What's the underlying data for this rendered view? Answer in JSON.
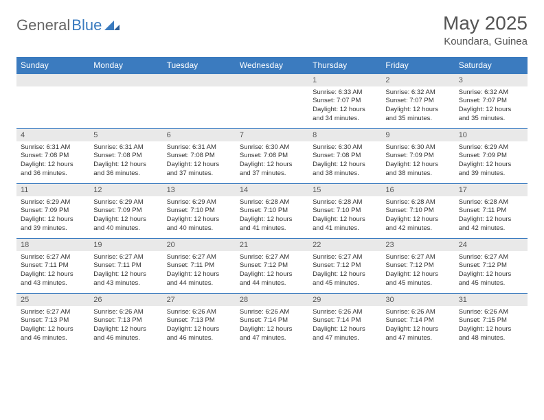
{
  "logo": {
    "word1": "General",
    "word2": "Blue"
  },
  "title": "May 2025",
  "location": "Koundara, Guinea",
  "colors": {
    "header_bg": "#3b7bbf",
    "header_text": "#ffffff",
    "numrow_bg": "#e9e9e9",
    "border_top": "#3b7bbf",
    "body_text": "#333333",
    "title_text": "#555555"
  },
  "day_headers": [
    "Sunday",
    "Monday",
    "Tuesday",
    "Wednesday",
    "Thursday",
    "Friday",
    "Saturday"
  ],
  "weeks": [
    {
      "nums": [
        "",
        "",
        "",
        "",
        "1",
        "2",
        "3"
      ],
      "cells": [
        null,
        null,
        null,
        null,
        {
          "sunrise": "6:33 AM",
          "sunset": "7:07 PM",
          "daylight": "12 hours and 34 minutes."
        },
        {
          "sunrise": "6:32 AM",
          "sunset": "7:07 PM",
          "daylight": "12 hours and 35 minutes."
        },
        {
          "sunrise": "6:32 AM",
          "sunset": "7:07 PM",
          "daylight": "12 hours and 35 minutes."
        }
      ]
    },
    {
      "nums": [
        "4",
        "5",
        "6",
        "7",
        "8",
        "9",
        "10"
      ],
      "cells": [
        {
          "sunrise": "6:31 AM",
          "sunset": "7:08 PM",
          "daylight": "12 hours and 36 minutes."
        },
        {
          "sunrise": "6:31 AM",
          "sunset": "7:08 PM",
          "daylight": "12 hours and 36 minutes."
        },
        {
          "sunrise": "6:31 AM",
          "sunset": "7:08 PM",
          "daylight": "12 hours and 37 minutes."
        },
        {
          "sunrise": "6:30 AM",
          "sunset": "7:08 PM",
          "daylight": "12 hours and 37 minutes."
        },
        {
          "sunrise": "6:30 AM",
          "sunset": "7:08 PM",
          "daylight": "12 hours and 38 minutes."
        },
        {
          "sunrise": "6:30 AM",
          "sunset": "7:09 PM",
          "daylight": "12 hours and 38 minutes."
        },
        {
          "sunrise": "6:29 AM",
          "sunset": "7:09 PM",
          "daylight": "12 hours and 39 minutes."
        }
      ]
    },
    {
      "nums": [
        "11",
        "12",
        "13",
        "14",
        "15",
        "16",
        "17"
      ],
      "cells": [
        {
          "sunrise": "6:29 AM",
          "sunset": "7:09 PM",
          "daylight": "12 hours and 39 minutes."
        },
        {
          "sunrise": "6:29 AM",
          "sunset": "7:09 PM",
          "daylight": "12 hours and 40 minutes."
        },
        {
          "sunrise": "6:29 AM",
          "sunset": "7:10 PM",
          "daylight": "12 hours and 40 minutes."
        },
        {
          "sunrise": "6:28 AM",
          "sunset": "7:10 PM",
          "daylight": "12 hours and 41 minutes."
        },
        {
          "sunrise": "6:28 AM",
          "sunset": "7:10 PM",
          "daylight": "12 hours and 41 minutes."
        },
        {
          "sunrise": "6:28 AM",
          "sunset": "7:10 PM",
          "daylight": "12 hours and 42 minutes."
        },
        {
          "sunrise": "6:28 AM",
          "sunset": "7:11 PM",
          "daylight": "12 hours and 42 minutes."
        }
      ]
    },
    {
      "nums": [
        "18",
        "19",
        "20",
        "21",
        "22",
        "23",
        "24"
      ],
      "cells": [
        {
          "sunrise": "6:27 AM",
          "sunset": "7:11 PM",
          "daylight": "12 hours and 43 minutes."
        },
        {
          "sunrise": "6:27 AM",
          "sunset": "7:11 PM",
          "daylight": "12 hours and 43 minutes."
        },
        {
          "sunrise": "6:27 AM",
          "sunset": "7:11 PM",
          "daylight": "12 hours and 44 minutes."
        },
        {
          "sunrise": "6:27 AM",
          "sunset": "7:12 PM",
          "daylight": "12 hours and 44 minutes."
        },
        {
          "sunrise": "6:27 AM",
          "sunset": "7:12 PM",
          "daylight": "12 hours and 45 minutes."
        },
        {
          "sunrise": "6:27 AM",
          "sunset": "7:12 PM",
          "daylight": "12 hours and 45 minutes."
        },
        {
          "sunrise": "6:27 AM",
          "sunset": "7:12 PM",
          "daylight": "12 hours and 45 minutes."
        }
      ]
    },
    {
      "nums": [
        "25",
        "26",
        "27",
        "28",
        "29",
        "30",
        "31"
      ],
      "cells": [
        {
          "sunrise": "6:27 AM",
          "sunset": "7:13 PM",
          "daylight": "12 hours and 46 minutes."
        },
        {
          "sunrise": "6:26 AM",
          "sunset": "7:13 PM",
          "daylight": "12 hours and 46 minutes."
        },
        {
          "sunrise": "6:26 AM",
          "sunset": "7:13 PM",
          "daylight": "12 hours and 46 minutes."
        },
        {
          "sunrise": "6:26 AM",
          "sunset": "7:14 PM",
          "daylight": "12 hours and 47 minutes."
        },
        {
          "sunrise": "6:26 AM",
          "sunset": "7:14 PM",
          "daylight": "12 hours and 47 minutes."
        },
        {
          "sunrise": "6:26 AM",
          "sunset": "7:14 PM",
          "daylight": "12 hours and 47 minutes."
        },
        {
          "sunrise": "6:26 AM",
          "sunset": "7:15 PM",
          "daylight": "12 hours and 48 minutes."
        }
      ]
    }
  ],
  "labels": {
    "sunrise": "Sunrise:",
    "sunset": "Sunset:",
    "daylight": "Daylight:"
  }
}
